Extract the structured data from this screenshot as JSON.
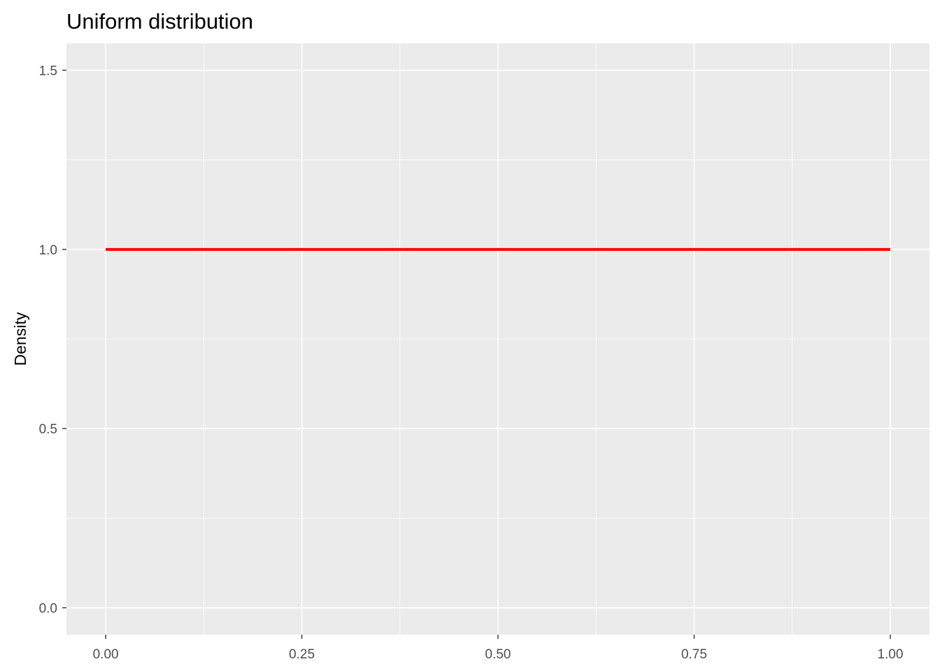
{
  "chart_data": {
    "type": "line",
    "title": "Uniform distribution",
    "xlabel": "",
    "ylabel": "Density",
    "xlim": [
      -0.05,
      1.05
    ],
    "ylim": [
      -0.075,
      1.575
    ],
    "x_ticks": [
      0.0,
      0.25,
      0.5,
      0.75,
      1.0
    ],
    "x_tick_labels": [
      "0.00",
      "0.25",
      "0.50",
      "0.75",
      "1.00"
    ],
    "y_ticks": [
      0.0,
      0.5,
      1.0,
      1.5
    ],
    "y_tick_labels": [
      "0.0",
      "0.5",
      "1.0",
      "1.5"
    ],
    "grid": true,
    "legend": "none",
    "panel_background": "#ebebeb",
    "grid_color": "#ffffff",
    "series": [
      {
        "color": "#ff0000",
        "x": [
          0,
          1
        ],
        "y": [
          1,
          1
        ]
      }
    ]
  }
}
